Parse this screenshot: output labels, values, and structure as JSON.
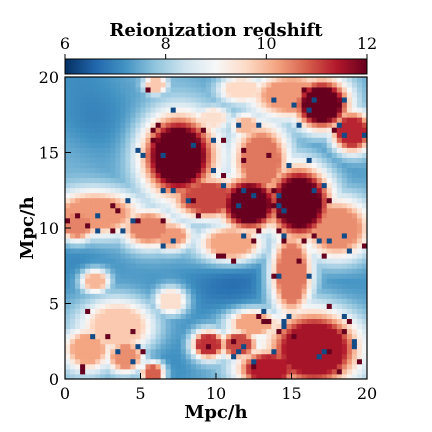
{
  "chart_data": {
    "type": "heatmap",
    "title": "",
    "xlabel": "Mpc/h",
    "ylabel": "Mpc/h",
    "xlim": [
      0,
      20
    ],
    "ylim": [
      0,
      20
    ],
    "xticks": [
      0,
      5,
      10,
      15,
      20
    ],
    "yticks": [
      0,
      5,
      10,
      15,
      20
    ],
    "colorbar": {
      "label": "Reionization redshift",
      "range": [
        6,
        12
      ],
      "ticks": [
        6,
        8,
        10,
        12
      ],
      "colormap": "RdBu_r",
      "stops": [
        "#053061",
        "#2166ac",
        "#4393c3",
        "#92c5de",
        "#d1e5f0",
        "#f7f7f7",
        "#fddbc7",
        "#f4a582",
        "#d6604d",
        "#b2182b",
        "#67001f"
      ]
    },
    "background_redshift": 7.4,
    "regions": [
      {
        "x": 7.5,
        "y": 14.8,
        "sx": 1.6,
        "sy": 1.8,
        "z": 12.0
      },
      {
        "x": 9.5,
        "y": 12.0,
        "sx": 1.6,
        "sy": 0.9,
        "z": 11.0
      },
      {
        "x": 12.2,
        "y": 11.6,
        "sx": 1.3,
        "sy": 1.2,
        "z": 12.0
      },
      {
        "x": 15.5,
        "y": 11.7,
        "sx": 1.4,
        "sy": 1.6,
        "z": 12.0
      },
      {
        "x": 13.0,
        "y": 14.5,
        "sx": 1.2,
        "sy": 1.6,
        "z": 10.6
      },
      {
        "x": 17.0,
        "y": 18.2,
        "sx": 1.2,
        "sy": 1.1,
        "z": 12.0
      },
      {
        "x": 15.0,
        "y": 18.8,
        "sx": 1.8,
        "sy": 1.0,
        "z": 10.3
      },
      {
        "x": 19.0,
        "y": 16.4,
        "sx": 0.9,
        "sy": 0.9,
        "z": 11.3
      },
      {
        "x": 2.0,
        "y": 11.0,
        "sx": 2.0,
        "sy": 1.0,
        "z": 10.3
      },
      {
        "x": 0.8,
        "y": 10.2,
        "sx": 0.8,
        "sy": 0.7,
        "z": 10.5
      },
      {
        "x": 5.5,
        "y": 10.0,
        "sx": 1.1,
        "sy": 0.8,
        "z": 10.5
      },
      {
        "x": 7.0,
        "y": 9.5,
        "sx": 0.9,
        "sy": 0.6,
        "z": 10.3
      },
      {
        "x": 11.0,
        "y": 9.0,
        "sx": 1.4,
        "sy": 0.8,
        "z": 10.2
      },
      {
        "x": 15.0,
        "y": 7.0,
        "sx": 0.9,
        "sy": 1.9,
        "z": 10.6
      },
      {
        "x": 18.0,
        "y": 10.0,
        "sx": 1.5,
        "sy": 1.3,
        "z": 10.4
      },
      {
        "x": 16.5,
        "y": 2.0,
        "sx": 2.0,
        "sy": 1.7,
        "z": 11.5
      },
      {
        "x": 13.5,
        "y": 0.7,
        "sx": 1.3,
        "sy": 0.8,
        "z": 11.4
      },
      {
        "x": 11.5,
        "y": 2.3,
        "sx": 0.8,
        "sy": 0.6,
        "z": 11.0
      },
      {
        "x": 9.5,
        "y": 2.3,
        "sx": 0.7,
        "sy": 0.6,
        "z": 11.2
      },
      {
        "x": 12.5,
        "y": 3.7,
        "sx": 1.1,
        "sy": 0.6,
        "z": 10.2
      },
      {
        "x": 3.5,
        "y": 3.5,
        "sx": 1.6,
        "sy": 1.2,
        "z": 9.8
      },
      {
        "x": 1.5,
        "y": 2.0,
        "sx": 1.0,
        "sy": 0.9,
        "z": 10.2
      },
      {
        "x": 4.0,
        "y": 1.5,
        "sx": 0.8,
        "sy": 0.7,
        "z": 10.4
      },
      {
        "x": 5.8,
        "y": 0.4,
        "sx": 0.5,
        "sy": 0.5,
        "z": 10.8
      },
      {
        "x": 7.0,
        "y": 5.2,
        "sx": 0.7,
        "sy": 0.6,
        "z": 9.5
      },
      {
        "x": 12.0,
        "y": 16.8,
        "sx": 0.6,
        "sy": 0.5,
        "z": 10.0
      },
      {
        "x": 9.8,
        "y": 17.3,
        "sx": 0.7,
        "sy": 0.5,
        "z": 9.5
      },
      {
        "x": 11.7,
        "y": 19.2,
        "sx": 1.0,
        "sy": 0.6,
        "z": 9.6
      },
      {
        "x": 6.0,
        "y": 19.5,
        "sx": 0.5,
        "sy": 0.4,
        "z": 9.8
      },
      {
        "x": 2.0,
        "y": 6.5,
        "sx": 0.6,
        "sy": 0.5,
        "z": 10.0
      }
    ],
    "cold_regions": [
      {
        "x": 1.5,
        "y": 17.0,
        "sx": 1.8,
        "sy": 1.8,
        "dz": -0.6
      },
      {
        "x": 18.0,
        "y": 6.5,
        "sx": 1.8,
        "sy": 2.0,
        "dz": -0.5
      },
      {
        "x": 6.0,
        "y": 6.5,
        "sx": 2.2,
        "sy": 1.6,
        "dz": -0.4
      },
      {
        "x": 11.0,
        "y": 6.0,
        "sx": 2.0,
        "sy": 1.5,
        "dz": -0.5
      }
    ]
  }
}
